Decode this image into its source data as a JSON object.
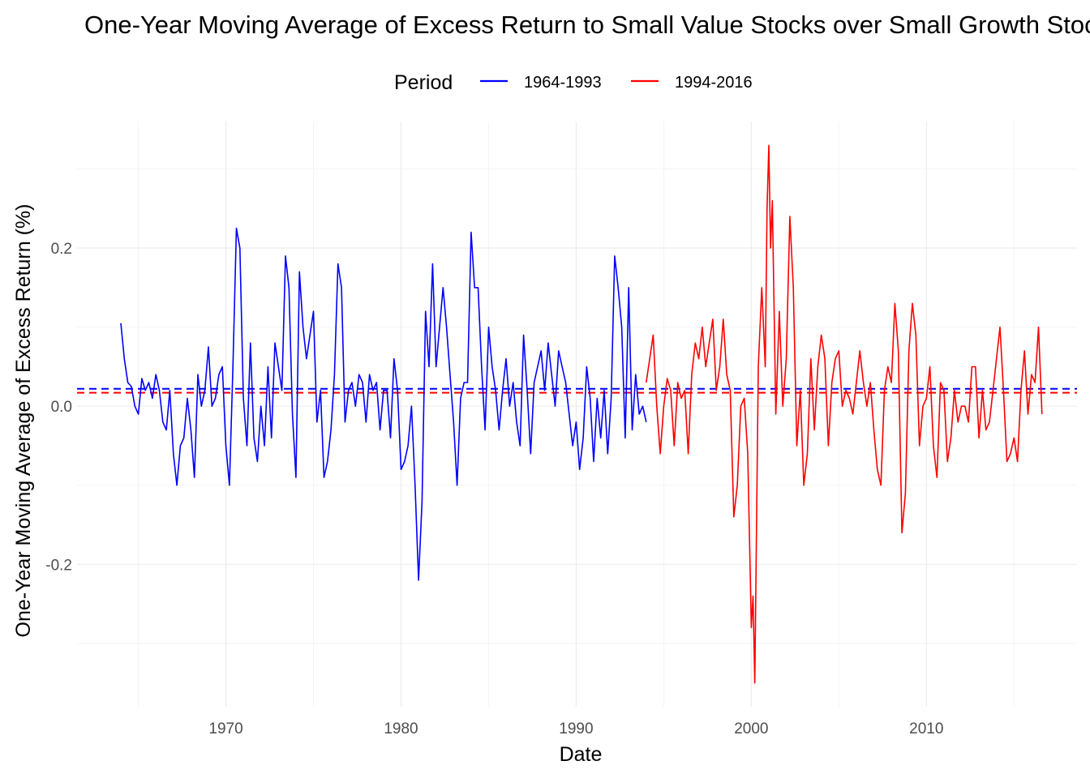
{
  "chart_data": {
    "type": "line",
    "title": "One-Year Moving Average of Excess Return to Small Value Stocks over Small Growth Stocks",
    "xlabel": "Date",
    "ylabel": "One-Year Moving Average of Excess Return (%)",
    "xlim": [
      1961.5,
      2018.6
    ],
    "ylim": [
      -0.38,
      0.36
    ],
    "x_ticks": [
      1970,
      1980,
      1990,
      2000,
      2010
    ],
    "x_tick_labels": [
      "1970",
      "1980",
      "1990",
      "2000",
      "2010"
    ],
    "y_ticks": [
      -0.2,
      0.0,
      0.2
    ],
    "y_tick_labels": [
      "-0.2",
      "0.0",
      "0.2"
    ],
    "grid": true,
    "legend": {
      "title": "Period",
      "position": "top"
    },
    "series": [
      {
        "name": "1964-1993",
        "color": "#0000ff",
        "mean": 0.022,
        "x": [
          1964.0,
          1964.2,
          1964.4,
          1964.6,
          1964.8,
          1965.0,
          1965.2,
          1965.4,
          1965.6,
          1965.8,
          1966.0,
          1966.2,
          1966.4,
          1966.6,
          1966.8,
          1967.0,
          1967.2,
          1967.4,
          1967.6,
          1967.8,
          1968.0,
          1968.2,
          1968.4,
          1968.6,
          1968.8,
          1969.0,
          1969.2,
          1969.4,
          1969.6,
          1969.8,
          1970.0,
          1970.2,
          1970.4,
          1970.6,
          1970.8,
          1971.0,
          1971.2,
          1971.4,
          1971.6,
          1971.8,
          1972.0,
          1972.2,
          1972.4,
          1972.6,
          1972.8,
          1973.0,
          1973.2,
          1973.4,
          1973.6,
          1973.8,
          1974.0,
          1974.2,
          1974.4,
          1974.6,
          1974.8,
          1975.0,
          1975.2,
          1975.4,
          1975.6,
          1975.8,
          1976.0,
          1976.2,
          1976.4,
          1976.6,
          1976.8,
          1977.0,
          1977.2,
          1977.4,
          1977.6,
          1977.8,
          1978.0,
          1978.2,
          1978.4,
          1978.6,
          1978.8,
          1979.0,
          1979.2,
          1979.4,
          1979.6,
          1979.8,
          1980.0,
          1980.2,
          1980.4,
          1980.6,
          1980.8,
          1981.0,
          1981.2,
          1981.4,
          1981.6,
          1981.8,
          1982.0,
          1982.2,
          1982.4,
          1982.6,
          1982.8,
          1983.0,
          1983.2,
          1983.4,
          1983.6,
          1983.8,
          1984.0,
          1984.2,
          1984.4,
          1984.6,
          1984.8,
          1985.0,
          1985.2,
          1985.4,
          1985.6,
          1985.8,
          1986.0,
          1986.2,
          1986.4,
          1986.6,
          1986.8,
          1987.0,
          1987.2,
          1987.4,
          1987.6,
          1987.8,
          1988.0,
          1988.2,
          1988.4,
          1988.6,
          1988.8,
          1989.0,
          1989.2,
          1989.4,
          1989.6,
          1989.8,
          1990.0,
          1990.2,
          1990.4,
          1990.6,
          1990.8,
          1991.0,
          1991.2,
          1991.4,
          1991.6,
          1991.8,
          1992.0,
          1992.2,
          1992.4,
          1992.6,
          1992.8,
          1993.0,
          1993.2,
          1993.4,
          1993.6,
          1993.8,
          1994.0
        ],
        "y": [
          0.105,
          0.06,
          0.03,
          0.025,
          0.0,
          -0.01,
          0.035,
          0.02,
          0.03,
          0.01,
          0.04,
          0.02,
          -0.02,
          -0.03,
          0.02,
          -0.06,
          -0.1,
          -0.05,
          -0.04,
          0.01,
          -0.03,
          -0.09,
          0.04,
          0.0,
          0.02,
          0.075,
          0.0,
          0.01,
          0.04,
          0.05,
          -0.05,
          -0.1,
          0.05,
          0.225,
          0.2,
          0.01,
          -0.05,
          0.08,
          -0.04,
          -0.07,
          0.0,
          -0.05,
          0.05,
          -0.04,
          0.08,
          0.05,
          0.02,
          0.19,
          0.15,
          -0.01,
          -0.09,
          0.17,
          0.1,
          0.06,
          0.09,
          0.12,
          -0.02,
          0.02,
          -0.09,
          -0.07,
          -0.03,
          0.04,
          0.18,
          0.15,
          -0.02,
          0.02,
          0.03,
          0.0,
          0.04,
          0.03,
          -0.02,
          0.04,
          0.02,
          0.03,
          -0.03,
          0.02,
          0.02,
          -0.04,
          0.06,
          0.02,
          -0.08,
          -0.07,
          -0.05,
          0.0,
          -0.1,
          -0.22,
          -0.12,
          0.12,
          0.05,
          0.18,
          0.05,
          0.1,
          0.15,
          0.1,
          0.04,
          -0.02,
          -0.1,
          0.01,
          0.03,
          0.03,
          0.22,
          0.15,
          0.15,
          0.05,
          -0.03,
          0.1,
          0.05,
          0.02,
          -0.03,
          0.02,
          0.06,
          0.0,
          0.03,
          -0.02,
          -0.05,
          0.09,
          0.02,
          -0.06,
          0.03,
          0.05,
          0.07,
          0.02,
          0.08,
          0.04,
          0.0,
          0.07,
          0.05,
          0.03,
          -0.01,
          -0.05,
          -0.02,
          -0.08,
          -0.04,
          0.05,
          0.01,
          -0.07,
          0.01,
          -0.04,
          0.02,
          -0.06,
          0.01,
          0.19,
          0.15,
          0.1,
          -0.04,
          0.15,
          -0.03,
          0.04,
          -0.01,
          0.0,
          -0.02
        ]
      },
      {
        "name": "1994-2016",
        "color": "#ff0000",
        "mean": 0.017,
        "x": [
          1994.0,
          1994.2,
          1994.4,
          1994.6,
          1994.8,
          1995.0,
          1995.2,
          1995.4,
          1995.6,
          1995.8,
          1996.0,
          1996.2,
          1996.4,
          1996.6,
          1996.8,
          1997.0,
          1997.2,
          1997.4,
          1997.6,
          1997.8,
          1998.0,
          1998.2,
          1998.4,
          1998.6,
          1998.8,
          1999.0,
          1999.2,
          1999.4,
          1999.6,
          1999.8,
          2000.0,
          2000.1,
          2000.2,
          2000.4,
          2000.6,
          2000.8,
          2000.9,
          2001.0,
          2001.1,
          2001.2,
          2001.4,
          2001.6,
          2001.8,
          2002.0,
          2002.2,
          2002.4,
          2002.6,
          2002.8,
          2003.0,
          2003.2,
          2003.4,
          2003.6,
          2003.8,
          2004.0,
          2004.2,
          2004.4,
          2004.6,
          2004.8,
          2005.0,
          2005.2,
          2005.4,
          2005.6,
          2005.8,
          2006.0,
          2006.2,
          2006.4,
          2006.6,
          2006.8,
          2007.0,
          2007.2,
          2007.4,
          2007.6,
          2007.8,
          2008.0,
          2008.2,
          2008.4,
          2008.6,
          2008.8,
          2009.0,
          2009.2,
          2009.4,
          2009.6,
          2009.8,
          2010.0,
          2010.2,
          2010.4,
          2010.6,
          2010.8,
          2011.0,
          2011.2,
          2011.4,
          2011.6,
          2011.8,
          2012.0,
          2012.2,
          2012.4,
          2012.6,
          2012.8,
          2013.0,
          2013.2,
          2013.4,
          2013.6,
          2013.8,
          2014.0,
          2014.2,
          2014.4,
          2014.6,
          2014.8,
          2015.0,
          2015.2,
          2015.4,
          2015.6,
          2015.8,
          2016.0,
          2016.2,
          2016.4,
          2016.6
        ],
        "y": [
          0.03,
          0.06,
          0.09,
          0.0,
          -0.06,
          0.0,
          0.035,
          0.02,
          -0.05,
          0.03,
          0.01,
          0.02,
          -0.06,
          0.04,
          0.08,
          0.06,
          0.1,
          0.05,
          0.08,
          0.11,
          0.02,
          0.05,
          0.11,
          0.04,
          0.02,
          -0.14,
          -0.1,
          0.0,
          0.01,
          -0.06,
          -0.28,
          -0.24,
          -0.35,
          0.05,
          0.15,
          0.05,
          0.25,
          0.33,
          0.2,
          0.26,
          -0.01,
          0.12,
          0.0,
          0.06,
          0.24,
          0.15,
          -0.05,
          0.02,
          -0.1,
          -0.06,
          0.06,
          -0.03,
          0.05,
          0.09,
          0.06,
          -0.05,
          0.03,
          0.06,
          0.07,
          0.0,
          0.02,
          0.01,
          -0.01,
          0.03,
          0.07,
          0.03,
          0.0,
          0.03,
          -0.03,
          -0.08,
          -0.1,
          0.02,
          0.05,
          0.03,
          0.13,
          0.07,
          -0.16,
          -0.11,
          0.07,
          0.13,
          0.09,
          -0.05,
          0.0,
          0.01,
          0.05,
          -0.05,
          -0.09,
          0.03,
          0.02,
          -0.07,
          -0.04,
          0.02,
          -0.02,
          0.0,
          0.0,
          -0.02,
          0.05,
          0.05,
          -0.04,
          0.02,
          -0.03,
          -0.02,
          0.02,
          0.06,
          0.1,
          0.02,
          -0.07,
          -0.06,
          -0.04,
          -0.07,
          0.02,
          0.07,
          -0.01,
          0.04,
          0.03,
          0.1,
          -0.01
        ]
      }
    ]
  }
}
